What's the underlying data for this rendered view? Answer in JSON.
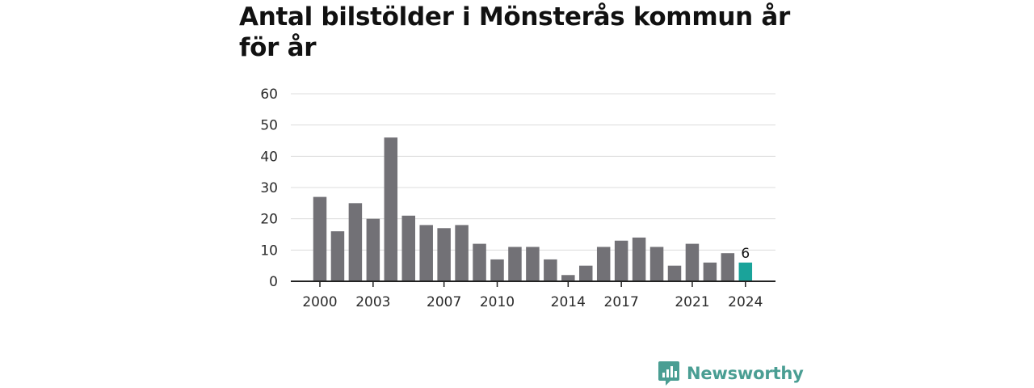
{
  "chart_data": {
    "type": "bar",
    "title": "Antal bilstölder i Mönsterås kommun år för år",
    "xlabel": "",
    "ylabel": "",
    "x": [
      2000,
      2001,
      2002,
      2003,
      2004,
      2005,
      2006,
      2007,
      2008,
      2009,
      2010,
      2011,
      2012,
      2013,
      2014,
      2015,
      2016,
      2017,
      2018,
      2019,
      2020,
      2021,
      2022,
      2023,
      2024
    ],
    "values": [
      27,
      16,
      25,
      20,
      46,
      21,
      18,
      17,
      18,
      12,
      7,
      11,
      11,
      7,
      2,
      5,
      11,
      13,
      14,
      11,
      5,
      12,
      6,
      9,
      6
    ],
    "x_tick_labels": [
      "2000",
      "2003",
      "2007",
      "2010",
      "2014",
      "2017",
      "2021",
      "2024"
    ],
    "x_tick_values": [
      2000,
      2003,
      2007,
      2010,
      2014,
      2017,
      2021,
      2024
    ],
    "y_ticks": [
      0,
      10,
      20,
      30,
      40,
      50,
      60
    ],
    "ylim": [
      0,
      60
    ],
    "grid": true,
    "legend": "none",
    "highlight": {
      "year": 2024,
      "label": "6"
    },
    "colors": {
      "bar": "#727176",
      "highlight": "#1aa39a",
      "grid": "#dcdcdc",
      "axis": "#222222"
    }
  },
  "brand": {
    "name": "Newsworthy",
    "icon": "newsworthy-logo-icon",
    "color": "#4a9e93"
  }
}
